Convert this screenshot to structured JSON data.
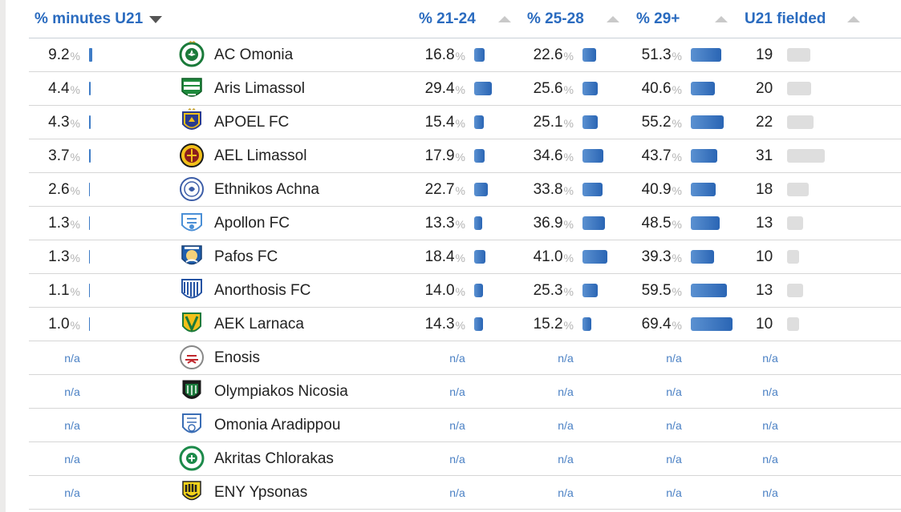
{
  "colors": {
    "header_text": "#2a6bbf",
    "bar_blue": "#2a65b4",
    "bar_grey": "#dedede",
    "na_text": "#4a80c4"
  },
  "headers": {
    "u21_minutes": "% minutes U21",
    "age_21_24": "% 21-24",
    "age_25_28": "% 25-28",
    "age_29_plus": "% 29+",
    "u21_fielded": "U21 fielded"
  },
  "percent_sign": "%",
  "na_label": "n/a",
  "rows": [
    {
      "team": "AC Omonia",
      "logo": "omonia-logo",
      "u21": "9.2",
      "a2124": "16.8",
      "a2528": "22.6",
      "a29": "51.3",
      "fielded": "19"
    },
    {
      "team": "Aris Limassol",
      "logo": "aris-logo",
      "u21": "4.4",
      "a2124": "29.4",
      "a2528": "25.6",
      "a29": "40.6",
      "fielded": "20"
    },
    {
      "team": "APOEL FC",
      "logo": "apoel-logo",
      "u21": "4.3",
      "a2124": "15.4",
      "a2528": "25.1",
      "a29": "55.2",
      "fielded": "22"
    },
    {
      "team": "AEL Limassol",
      "logo": "ael-logo",
      "u21": "3.7",
      "a2124": "17.9",
      "a2528": "34.6",
      "a29": "43.7",
      "fielded": "31"
    },
    {
      "team": "Ethnikos Achna",
      "logo": "ethnikos-logo",
      "u21": "2.6",
      "a2124": "22.7",
      "a2528": "33.8",
      "a29": "40.9",
      "fielded": "18"
    },
    {
      "team": "Apollon FC",
      "logo": "apollon-logo",
      "u21": "1.3",
      "a2124": "13.3",
      "a2528": "36.9",
      "a29": "48.5",
      "fielded": "13"
    },
    {
      "team": "Pafos FC",
      "logo": "pafos-logo",
      "u21": "1.3",
      "a2124": "18.4",
      "a2528": "41.0",
      "a29": "39.3",
      "fielded": "10"
    },
    {
      "team": "Anorthosis FC",
      "logo": "anorthosis-logo",
      "u21": "1.1",
      "a2124": "14.0",
      "a2528": "25.3",
      "a29": "59.5",
      "fielded": "13"
    },
    {
      "team": "AEK Larnaca",
      "logo": "aek-logo",
      "u21": "1.0",
      "a2124": "14.3",
      "a2528": "15.2",
      "a29": "69.4",
      "fielded": "10"
    },
    {
      "team": "Enosis",
      "logo": "enosis-logo",
      "na": true
    },
    {
      "team": "Olympiakos Nicosia",
      "logo": "olympiakos-logo",
      "na": true
    },
    {
      "team": "Omonia Aradippou",
      "logo": "omonia-aradippou-logo",
      "na": true
    },
    {
      "team": "Akritas Chlorakas",
      "logo": "akritas-logo",
      "na": true
    },
    {
      "team": "ENY Ypsonas",
      "logo": "eny-logo",
      "na": true
    }
  ]
}
